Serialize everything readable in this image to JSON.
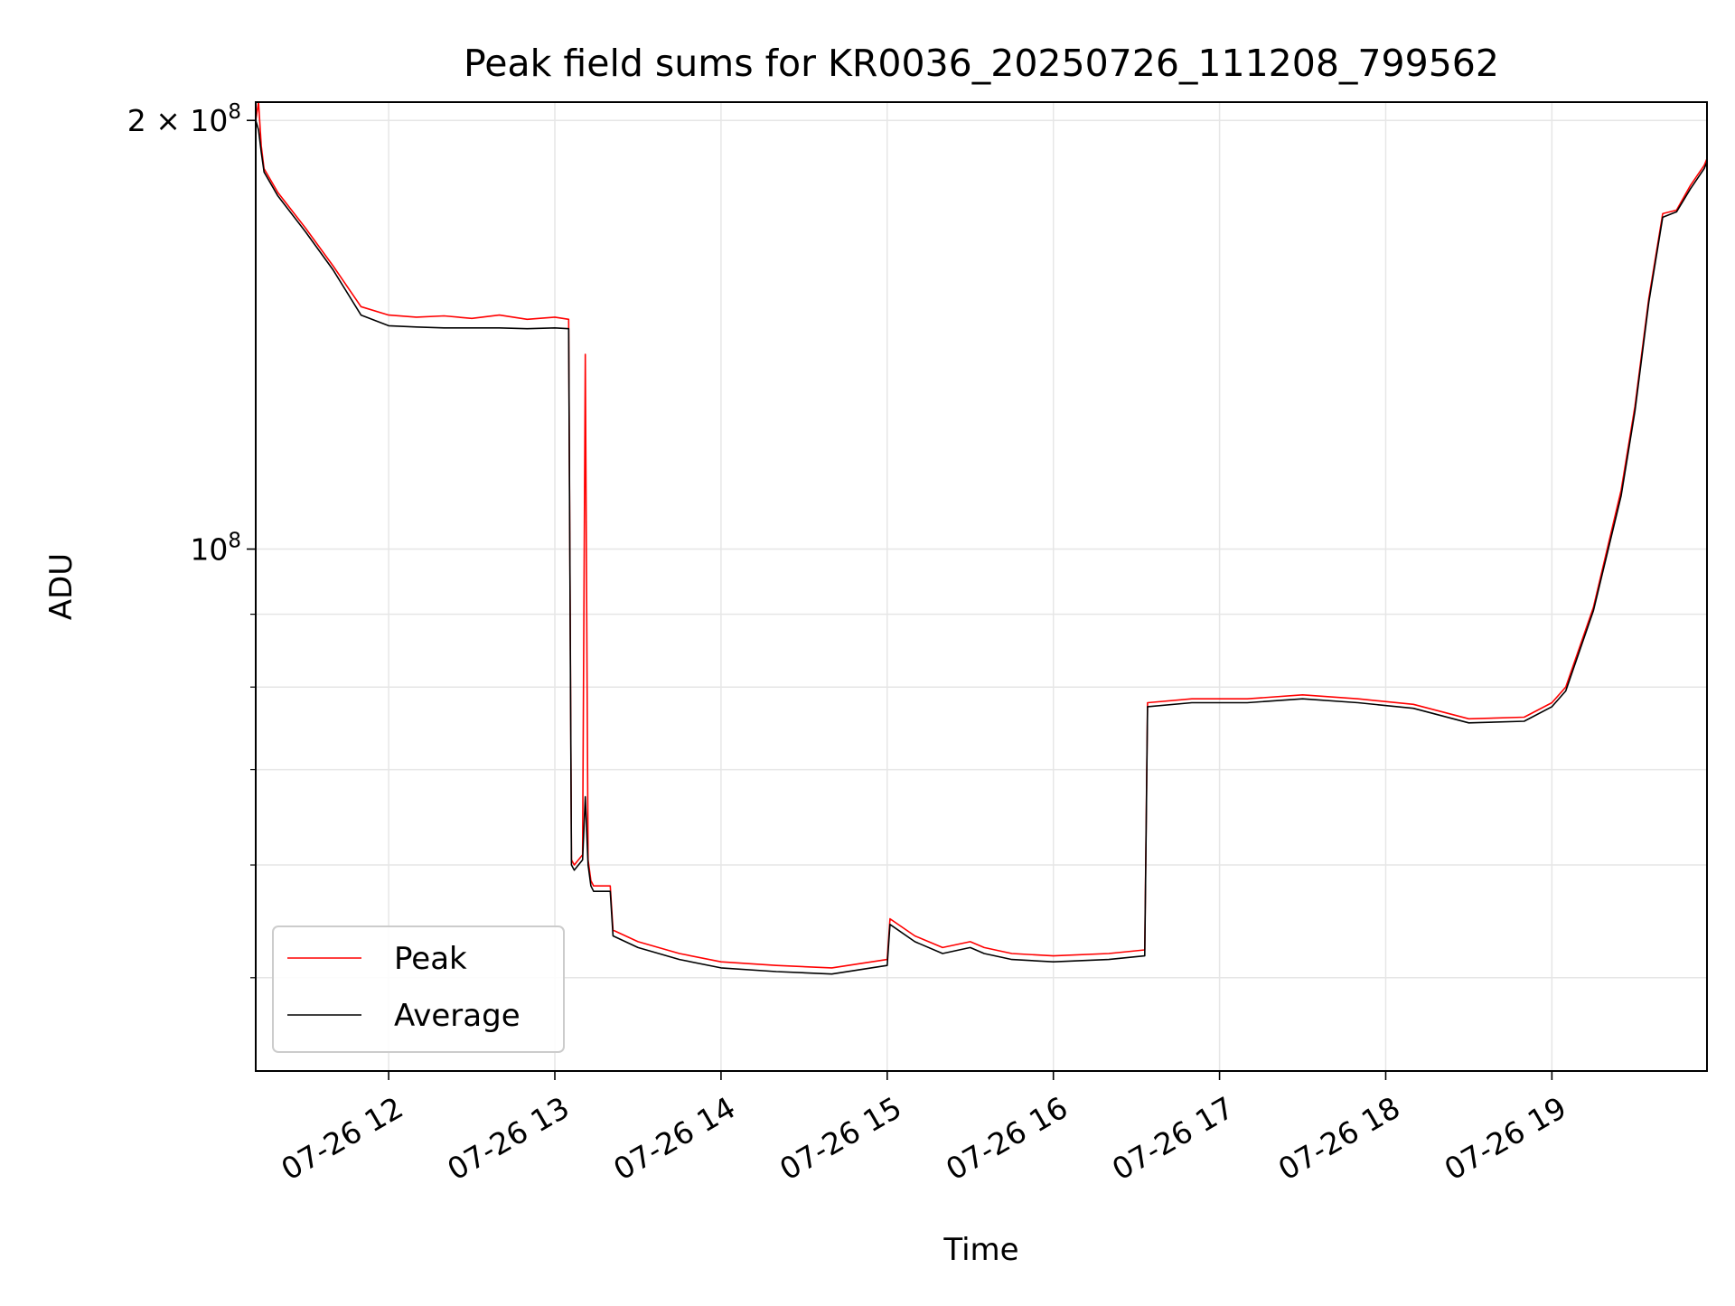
{
  "chart_data": {
    "type": "line",
    "title": "Peak field sums for KR0036_20250726_111208_799562",
    "xlabel": "Time",
    "ylabel": "ADU",
    "yscale": "log",
    "ylim": [
      43000000,
      206000000
    ],
    "xlim": [
      "07-26 11:12",
      "07-26 19:56"
    ],
    "grid": true,
    "legend_position": "lower-left",
    "x_ticks": [
      "07-26 12",
      "07-26 13",
      "07-26 14",
      "07-26 15",
      "07-26 16",
      "07-26 17",
      "07-26 18",
      "07-26 19"
    ],
    "y_ticks": [
      {
        "base": "10",
        "exp": "8",
        "value": 100000000
      },
      {
        "base": "2 × 10",
        "exp": "8",
        "value": 200000000
      }
    ],
    "series": [
      {
        "name": "Peak",
        "color": "#ff0000",
        "x": [
          "07-26 11:12",
          "07-26 11:13",
          "07-26 11:14",
          "07-26 11:15",
          "07-26 11:20",
          "07-26 11:30",
          "07-26 11:40",
          "07-26 11:50",
          "07-26 12:00",
          "07-26 12:10",
          "07-26 12:20",
          "07-26 12:30",
          "07-26 12:40",
          "07-26 12:50",
          "07-26 13:00",
          "07-26 13:05",
          "07-26 13:06",
          "07-26 13:07",
          "07-26 13:10",
          "07-26 13:11",
          "07-26 13:12",
          "07-26 13:13",
          "07-26 13:14",
          "07-26 13:20",
          "07-26 13:21",
          "07-26 13:30",
          "07-26 13:45",
          "07-26 14:00",
          "07-26 14:20",
          "07-26 14:40",
          "07-26 15:00",
          "07-26 15:01",
          "07-26 15:10",
          "07-26 15:20",
          "07-26 15:30",
          "07-26 15:35",
          "07-26 15:45",
          "07-26 16:00",
          "07-26 16:20",
          "07-26 16:33",
          "07-26 16:34",
          "07-26 16:50",
          "07-26 17:10",
          "07-26 17:30",
          "07-26 17:50",
          "07-26 18:10",
          "07-26 18:30",
          "07-26 18:50",
          "07-26 19:00",
          "07-26 19:05",
          "07-26 19:15",
          "07-26 19:25",
          "07-26 19:30",
          "07-26 19:35",
          "07-26 19:40",
          "07-26 19:45",
          "07-26 19:50",
          "07-26 19:55",
          "07-26 19:56"
        ],
        "y": [
          200000000,
          206000000,
          192000000,
          185000000,
          178000000,
          168000000,
          158000000,
          148000000,
          146000000,
          145500000,
          145800000,
          145200000,
          146000000,
          145000000,
          145500000,
          145000000,
          60500000,
          60000000,
          61000000,
          137000000,
          60500000,
          58500000,
          58000000,
          58000000,
          54000000,
          53000000,
          52000000,
          51300000,
          51000000,
          50800000,
          51500000,
          55000000,
          53500000,
          52500000,
          53000000,
          52500000,
          52000000,
          51800000,
          52000000,
          52300000,
          78000000,
          78500000,
          78500000,
          79000000,
          78500000,
          77800000,
          76000000,
          76200000,
          78000000,
          80000000,
          91000000,
          110000000,
          126000000,
          150000000,
          172000000,
          173000000,
          180000000,
          186000000,
          188000000
        ]
      },
      {
        "name": "Average",
        "color": "#000000",
        "x": [
          "07-26 11:12",
          "07-26 11:13",
          "07-26 11:14",
          "07-26 11:15",
          "07-26 11:20",
          "07-26 11:30",
          "07-26 11:40",
          "07-26 11:50",
          "07-26 12:00",
          "07-26 12:10",
          "07-26 12:20",
          "07-26 12:30",
          "07-26 12:40",
          "07-26 12:50",
          "07-26 13:00",
          "07-26 13:05",
          "07-26 13:06",
          "07-26 13:07",
          "07-26 13:10",
          "07-26 13:11",
          "07-26 13:12",
          "07-26 13:13",
          "07-26 13:14",
          "07-26 13:20",
          "07-26 13:21",
          "07-26 13:30",
          "07-26 13:45",
          "07-26 14:00",
          "07-26 14:20",
          "07-26 14:40",
          "07-26 15:00",
          "07-26 15:01",
          "07-26 15:10",
          "07-26 15:20",
          "07-26 15:30",
          "07-26 15:35",
          "07-26 15:45",
          "07-26 16:00",
          "07-26 16:20",
          "07-26 16:33",
          "07-26 16:34",
          "07-26 16:50",
          "07-26 17:10",
          "07-26 17:30",
          "07-26 17:50",
          "07-26 18:10",
          "07-26 18:30",
          "07-26 18:50",
          "07-26 19:00",
          "07-26 19:05",
          "07-26 19:15",
          "07-26 19:25",
          "07-26 19:30",
          "07-26 19:35",
          "07-26 19:40",
          "07-26 19:45",
          "07-26 19:50",
          "07-26 19:55",
          "07-26 19:56"
        ],
        "y": [
          200000000,
          197000000,
          190000000,
          184000000,
          177000000,
          167000000,
          157000000,
          146000000,
          143500000,
          143200000,
          143000000,
          143000000,
          143000000,
          142800000,
          143000000,
          142800000,
          60000000,
          59500000,
          60500000,
          67000000,
          60000000,
          58000000,
          57500000,
          57500000,
          53500000,
          52500000,
          51500000,
          50800000,
          50500000,
          50300000,
          51000000,
          54500000,
          53000000,
          52000000,
          52500000,
          52000000,
          51500000,
          51300000,
          51500000,
          51800000,
          77500000,
          78000000,
          78000000,
          78500000,
          78000000,
          77300000,
          75500000,
          75700000,
          77500000,
          79500000,
          90500000,
          109000000,
          125000000,
          149000000,
          171000000,
          172500000,
          179000000,
          185000000,
          187000000
        ]
      }
    ]
  }
}
